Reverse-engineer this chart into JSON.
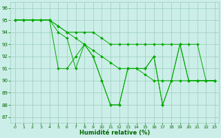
{
  "xlabel": "Humidité relative (%)",
  "background_color": "#cceee8",
  "grid_color": "#99ccbb",
  "line_color": "#00aa00",
  "xlim": [
    -0.5,
    23.5
  ],
  "ylim": [
    86.5,
    96.5
  ],
  "yticks": [
    87,
    88,
    89,
    90,
    91,
    92,
    93,
    94,
    95,
    96
  ],
  "xticks": [
    0,
    1,
    2,
    3,
    4,
    5,
    6,
    7,
    8,
    9,
    10,
    11,
    12,
    13,
    14,
    15,
    16,
    17,
    18,
    19,
    20,
    21,
    22,
    23
  ],
  "line1": [
    95,
    95,
    95,
    95,
    95,
    94.5,
    94,
    93.5,
    93,
    92.5,
    92,
    91.5,
    91,
    91,
    91,
    90.5,
    90,
    90,
    90,
    90,
    90,
    90,
    90,
    90
  ],
  "line2": [
    95,
    95,
    95,
    95,
    95,
    94.5,
    94,
    94,
    94,
    94,
    93.5,
    93,
    93,
    93,
    93,
    93,
    93,
    93,
    93,
    93,
    93,
    93,
    90,
    90
  ],
  "line3": [
    95,
    95,
    95,
    95,
    95,
    91,
    91,
    92,
    93,
    92,
    90,
    88,
    88,
    91,
    91,
    91,
    92,
    88,
    90,
    93,
    90,
    90,
    90,
    90
  ],
  "line4": [
    95,
    95,
    95,
    95,
    95,
    94,
    93.5,
    91,
    93,
    92,
    90,
    88,
    88,
    91,
    91,
    91,
    92,
    88,
    90,
    93,
    90,
    90,
    90,
    90
  ]
}
